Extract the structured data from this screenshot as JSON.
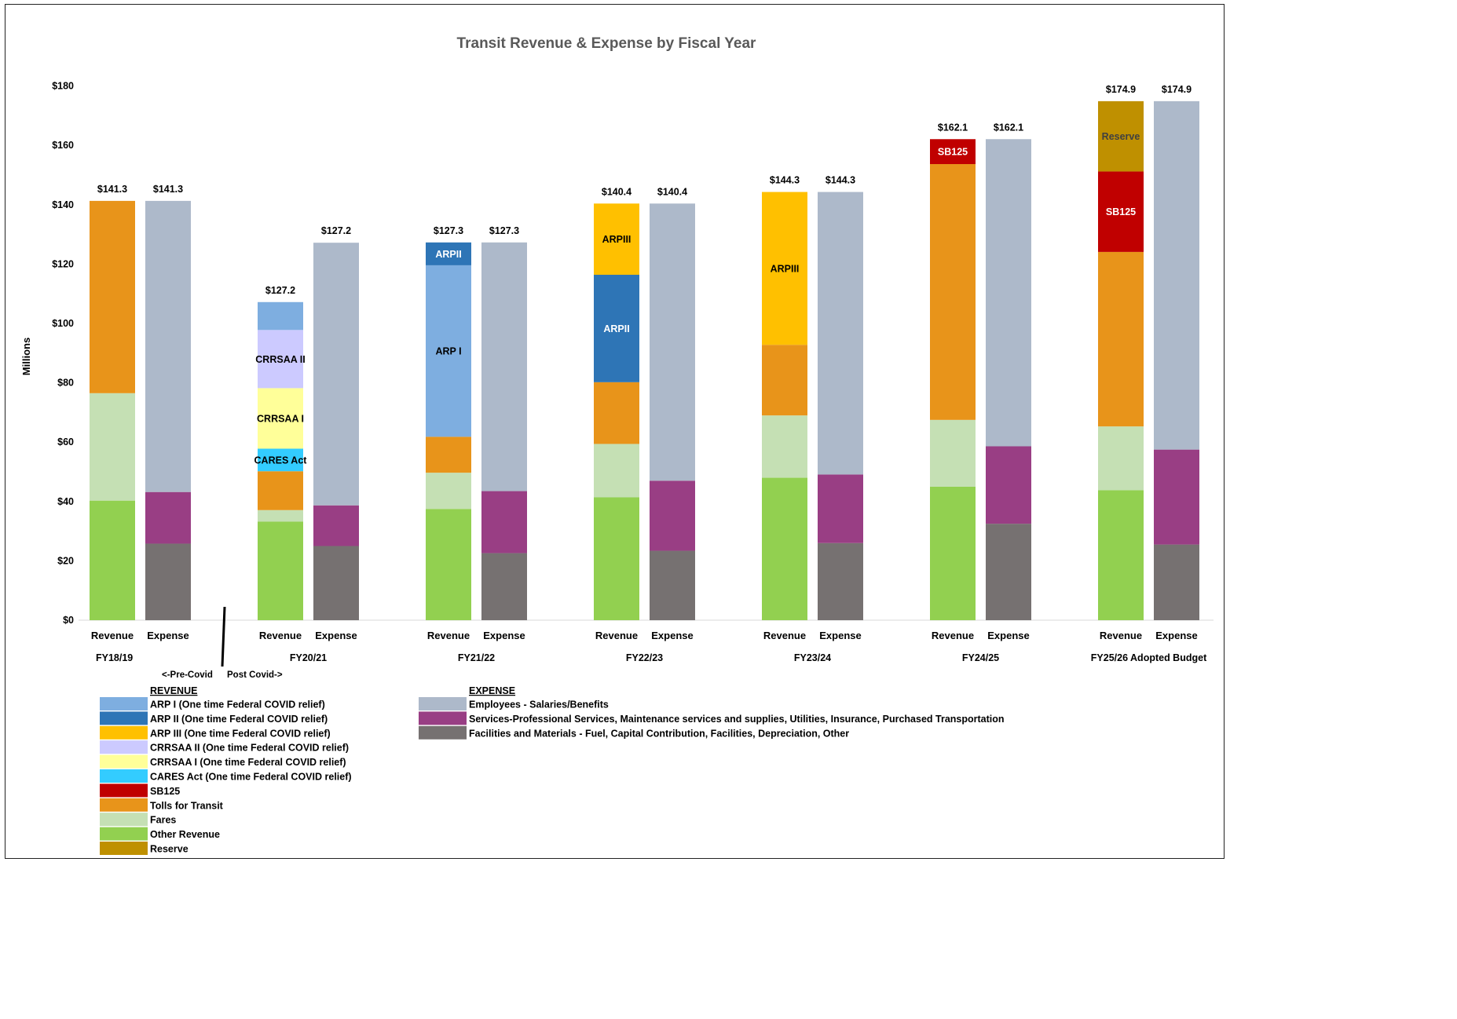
{
  "colors": {
    "arp1": "#7eaee0",
    "arp2": "#2e75b6",
    "arp3": "#ffc000",
    "crrsaa2": "#cccaff",
    "crrsaa1": "#ffff99",
    "cares": "#33ccff",
    "sb125": "#c00000",
    "tolls": "#e8941a",
    "fares": "#c5e0b4",
    "other_revenue": "#92d050",
    "reserve": "#bf9000",
    "salaries": "#adb9ca",
    "services": "#993e84",
    "facilities": "#767171"
  },
  "chart_data": {
    "type": "bar",
    "stacked": true,
    "title": "Transit Revenue & Expense by Fiscal Year",
    "ylabel": "Millions",
    "ylim": [
      0,
      180
    ],
    "yticks": [
      "$0",
      "$20",
      "$40",
      "$60",
      "$80",
      "$100",
      "$120",
      "$140",
      "$160",
      "$180"
    ],
    "ytick_values": [
      0,
      20,
      40,
      60,
      80,
      100,
      120,
      140,
      160,
      180
    ],
    "grid": false,
    "divider": {
      "left_label": "<-Pre-Covid",
      "right_label": "Post Covid->"
    },
    "groups": [
      {
        "label": "FY18/19",
        "bars": [
          {
            "label": "Revenue",
            "total_label": "$141.3",
            "segments": [
              {
                "key": "other_revenue",
                "value": 40.3
              },
              {
                "key": "fares",
                "value": 36.2
              },
              {
                "key": "tolls",
                "value": 64.8
              }
            ]
          },
          {
            "label": "Expense",
            "total_label": "$141.3",
            "segments": [
              {
                "key": "facilities",
                "value": 25.8
              },
              {
                "key": "services",
                "value": 17.4
              },
              {
                "key": "salaries",
                "value": 98.1
              }
            ]
          }
        ]
      },
      {
        "label": "FY20/21",
        "bars": [
          {
            "label": "Revenue",
            "total_label": "$127.2",
            "segments": [
              {
                "key": "other_revenue",
                "value": 33.2
              },
              {
                "key": "fares",
                "value": 3.9
              },
              {
                "key": "tolls",
                "value": 13.1
              },
              {
                "key": "cares",
                "value": 7.6,
                "text": "CARES Act"
              },
              {
                "key": "crrsaa1",
                "value": 20.4,
                "text": "CRRSAA I"
              },
              {
                "key": "crrsaa2",
                "value": 19.6,
                "text": "CRRSAA II"
              },
              {
                "key": "arp1",
                "value": 9.4
              }
            ]
          },
          {
            "label": "Expense",
            "total_label": "$127.2",
            "segments": [
              {
                "key": "facilities",
                "value": 25.0
              },
              {
                "key": "services",
                "value": 13.7
              },
              {
                "key": "salaries",
                "value": 88.5
              }
            ]
          }
        ]
      },
      {
        "label": "FY21/22",
        "bars": [
          {
            "label": "Revenue",
            "total_label": "$127.3",
            "segments": [
              {
                "key": "other_revenue",
                "value": 37.5
              },
              {
                "key": "fares",
                "value": 12.2
              },
              {
                "key": "tolls",
                "value": 12.1
              },
              {
                "key": "arp1",
                "value": 57.8,
                "text": "ARP I"
              },
              {
                "key": "arp2",
                "value": 7.7,
                "text": "ARPII"
              }
            ]
          },
          {
            "label": "Expense",
            "total_label": "$127.3",
            "segments": [
              {
                "key": "facilities",
                "value": 22.6
              },
              {
                "key": "services",
                "value": 20.9
              },
              {
                "key": "salaries",
                "value": 83.8
              }
            ]
          }
        ]
      },
      {
        "label": "FY22/23",
        "bars": [
          {
            "label": "Revenue",
            "total_label": "$140.4",
            "segments": [
              {
                "key": "other_revenue",
                "value": 41.4
              },
              {
                "key": "fares",
                "value": 18.0
              },
              {
                "key": "tolls",
                "value": 20.8
              },
              {
                "key": "arp2",
                "value": 36.2,
                "text": "ARPII"
              },
              {
                "key": "arp3",
                "value": 24.0,
                "text": "ARPIII"
              }
            ]
          },
          {
            "label": "Expense",
            "total_label": "$140.4",
            "segments": [
              {
                "key": "facilities",
                "value": 23.4
              },
              {
                "key": "services",
                "value": 23.6
              },
              {
                "key": "salaries",
                "value": 93.4
              }
            ]
          }
        ]
      },
      {
        "label": "FY23/24",
        "bars": [
          {
            "label": "Revenue",
            "total_label": "$144.3",
            "segments": [
              {
                "key": "other_revenue",
                "value": 48.0
              },
              {
                "key": "fares",
                "value": 21.0
              },
              {
                "key": "tolls",
                "value": 23.8
              },
              {
                "key": "arp3",
                "value": 51.5,
                "text": "ARPIII"
              }
            ]
          },
          {
            "label": "Expense",
            "total_label": "$144.3",
            "segments": [
              {
                "key": "facilities",
                "value": 26.0
              },
              {
                "key": "services",
                "value": 23.1
              },
              {
                "key": "salaries",
                "value": 95.2
              }
            ]
          }
        ]
      },
      {
        "label": "FY24/25",
        "bars": [
          {
            "label": "Revenue",
            "total_label": "$162.1",
            "segments": [
              {
                "key": "other_revenue",
                "value": 45.0
              },
              {
                "key": "fares",
                "value": 22.5
              },
              {
                "key": "tolls",
                "value": 86.2
              },
              {
                "key": "sb125",
                "value": 8.4,
                "text": "SB125"
              }
            ]
          },
          {
            "label": "Expense",
            "total_label": "$162.1",
            "segments": [
              {
                "key": "facilities",
                "value": 32.5
              },
              {
                "key": "services",
                "value": 26.1
              },
              {
                "key": "salaries",
                "value": 103.5
              }
            ]
          }
        ]
      },
      {
        "label": "FY25/26 Adopted Budget",
        "bars": [
          {
            "label": "Revenue",
            "total_label": "$174.9",
            "segments": [
              {
                "key": "other_revenue",
                "value": 43.8
              },
              {
                "key": "fares",
                "value": 21.5
              },
              {
                "key": "tolls",
                "value": 58.8
              },
              {
                "key": "sb125",
                "value": 27.1,
                "text": "SB125"
              },
              {
                "key": "reserve",
                "value": 23.7,
                "text": "Reserve"
              }
            ]
          },
          {
            "label": "Expense",
            "total_label": "$174.9",
            "segments": [
              {
                "key": "facilities",
                "value": 25.5
              },
              {
                "key": "services",
                "value": 32.0
              },
              {
                "key": "salaries",
                "value": 117.4
              }
            ]
          }
        ]
      }
    ],
    "legend": {
      "revenue_title": "REVENUE",
      "revenue_items": [
        {
          "key": "arp1",
          "label": "ARP I (One time Federal COVID relief)"
        },
        {
          "key": "arp2",
          "label": "ARP II (One time Federal COVID relief)"
        },
        {
          "key": "arp3",
          "label": "ARP III (One time Federal COVID relief)"
        },
        {
          "key": "crrsaa2",
          "label": "CRRSAA II (One time Federal COVID relief)"
        },
        {
          "key": "crrsaa1",
          "label": "CRRSAA I (One time Federal COVID relief)"
        },
        {
          "key": "cares",
          "label": "CARES Act (One time Federal COVID relief)"
        },
        {
          "key": "sb125",
          "label": "SB125"
        },
        {
          "key": "tolls",
          "label": "Tolls for Transit"
        },
        {
          "key": "fares",
          "label": "Fares"
        },
        {
          "key": "other_revenue",
          "label": "Other Revenue"
        },
        {
          "key": "reserve",
          "label": "Reserve"
        }
      ],
      "expense_title": "EXPENSE",
      "expense_items": [
        {
          "key": "salaries",
          "label": "Employees - Salaries/Benefits"
        },
        {
          "key": "services",
          "label": "Services-Professional Services, Maintenance services and supplies, Utilities, Insurance, Purchased Transportation"
        },
        {
          "key": "facilities",
          "label": "Facilities and Materials - Fuel, Capital Contribution, Facilities, Depreciation, Other"
        }
      ]
    }
  }
}
